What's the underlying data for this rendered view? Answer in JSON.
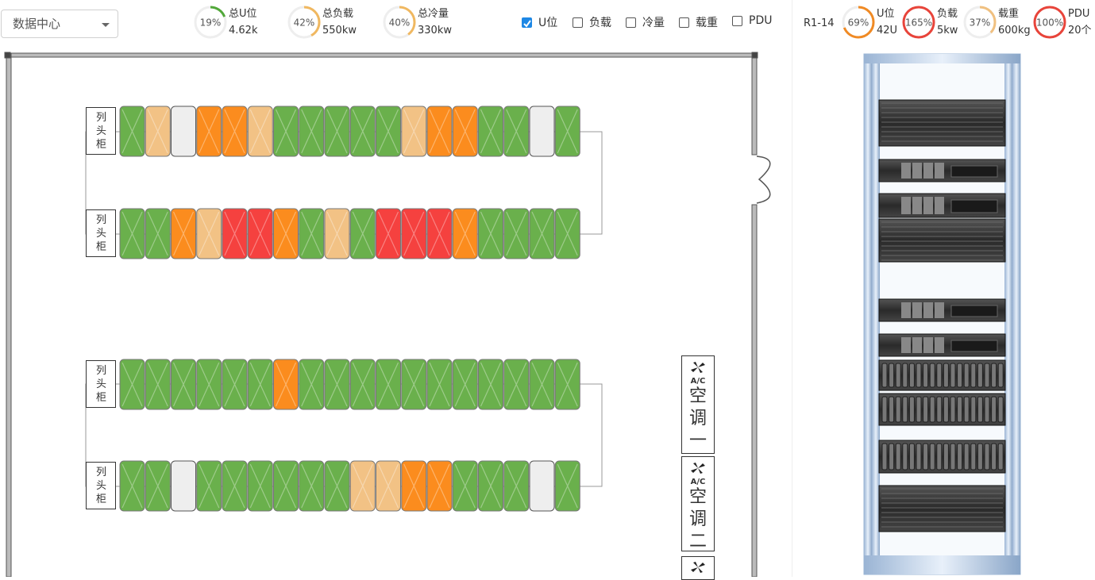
{
  "selector": "数据中心",
  "summary": [
    {
      "percent": {
        "value": 19,
        "label": "19%"
      },
      "title": "总U位",
      "amount": "4.62k",
      "color": "#52a83a"
    },
    {
      "percent": {
        "value": 42,
        "label": "42%"
      },
      "title": "总负载",
      "amount": "550kw",
      "color": "#f0b860"
    },
    {
      "percent": {
        "value": 40,
        "label": "40%"
      },
      "title": "总冷量",
      "amount": "330kw",
      "color": "#f0b860"
    }
  ],
  "filters": [
    {
      "label": "U位",
      "checked": true
    },
    {
      "label": "负载",
      "checked": false
    },
    {
      "label": "冷量",
      "checked": false
    },
    {
      "label": "载重",
      "checked": false
    },
    {
      "label": "PDU",
      "checked": false
    }
  ],
  "rack": {
    "name": "R1-14",
    "gauges": [
      {
        "percent": {
          "value": 69,
          "label": "69%"
        },
        "title": "U位",
        "amount": "42U",
        "color": "#f08a24"
      },
      {
        "percent": {
          "value": 165,
          "label": "165%"
        },
        "title": "负载",
        "amount": "5kw",
        "color": "#e8443a"
      },
      {
        "percent": {
          "value": 37,
          "label": "37%"
        },
        "title": "载重",
        "amount": "600kg",
        "color": "#f0c080"
      },
      {
        "percent": {
          "value": 100,
          "label": "100%"
        },
        "title": "PDU",
        "amount": "20个",
        "color": "#e8443a"
      }
    ]
  },
  "floor": {
    "rows": [
      {
        "head": "列头柜",
        "cabinets": [
          "#6ab04c",
          "#f2c285",
          "#eeeeee",
          "#fb8c1e",
          "#fb8c1e",
          "#f2c285",
          "#6ab04c",
          "#6ab04c",
          "#6ab04c",
          "#6ab04c",
          "#6ab04c",
          "#f2c285",
          "#fb8c1e",
          "#fb8c1e",
          "#6ab04c",
          "#6ab04c",
          "#eeeeee",
          "#6ab04c"
        ]
      },
      {
        "head": "列头柜",
        "cabinets": [
          "#6ab04c",
          "#6ab04c",
          "#fb8c1e",
          "#f2c285",
          "#f5413f",
          "#f5413f",
          "#fb8c1e",
          "#6ab04c",
          "#f2c285",
          "#6ab04c",
          "#f5413f",
          "#f5413f",
          "#f5413f",
          "#fb8c1e",
          "#6ab04c",
          "#6ab04c",
          "#6ab04c",
          "#6ab04c"
        ]
      },
      {
        "head": "列头柜",
        "cabinets": [
          "#6ab04c",
          "#6ab04c",
          "#6ab04c",
          "#6ab04c",
          "#6ab04c",
          "#6ab04c",
          "#fb8c1e",
          "#6ab04c",
          "#6ab04c",
          "#6ab04c",
          "#6ab04c",
          "#6ab04c",
          "#6ab04c",
          "#6ab04c",
          "#6ab04c",
          "#6ab04c",
          "#6ab04c",
          "#6ab04c"
        ]
      },
      {
        "head": "列头柜",
        "cabinets": [
          "#6ab04c",
          "#6ab04c",
          "#eeeeee",
          "#6ab04c",
          "#6ab04c",
          "#6ab04c",
          "#6ab04c",
          "#6ab04c",
          "#6ab04c",
          "#f2c285",
          "#f2c285",
          "#fb8c1e",
          "#fb8c1e",
          "#6ab04c",
          "#6ab04c",
          "#6ab04c",
          "#eeeeee",
          "#6ab04c"
        ]
      }
    ],
    "ac_icon": "A/C",
    "ac_units": [
      {
        "label": "空调一"
      },
      {
        "label": "空调二"
      }
    ]
  }
}
